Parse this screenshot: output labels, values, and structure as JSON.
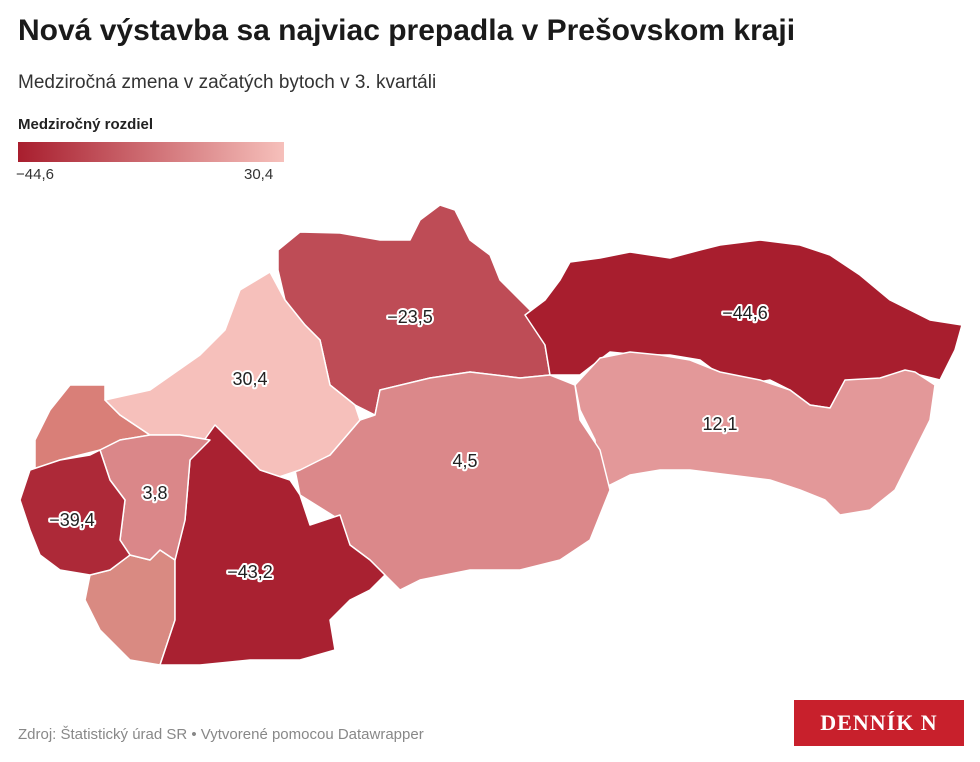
{
  "header": {
    "title": "Nová výstavba sa najviac prepadla v Prešovskom kraji",
    "subtitle": "Medziročná zmena v začatých bytoch v 3. kvartáli"
  },
  "legend": {
    "title": "Medziročný rozdiel",
    "min": {
      "value": -44.6,
      "label": "−44,6"
    },
    "max": {
      "value": 30.4,
      "label": "30,4"
    },
    "colors": [
      "#a81e2e",
      "#f6c0bb"
    ]
  },
  "regions": [
    {
      "value": -23.5,
      "label": "−23,5"
    },
    {
      "value": -44.6,
      "label": "−44,6"
    },
    {
      "value": 12.1,
      "label": "12,1"
    },
    {
      "value": 4.5,
      "label": "4,5"
    },
    {
      "value": 30.4,
      "label": "30,4"
    },
    {
      "value": -43.2,
      "label": "−43,2"
    },
    {
      "value": 3.8,
      "label": "3,8"
    },
    {
      "value": -39.4,
      "label": "−39,4"
    }
  ],
  "footer": {
    "source": "Zdroj: Štatistický úrad SR • Vytvorené pomocou Datawrapper",
    "logo": "DENNÍK N"
  }
}
